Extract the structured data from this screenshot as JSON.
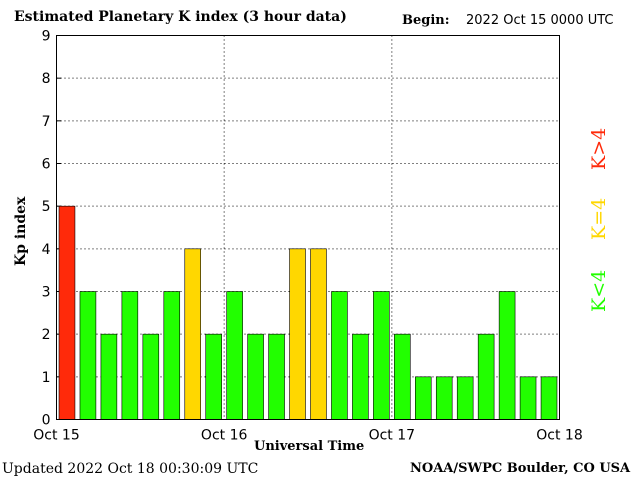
{
  "header": {
    "title": "Estimated Planetary K index (3 hour data)",
    "begin_label": "Begin:",
    "begin_value": "2022 Oct 15 0000 UTC"
  },
  "footer": {
    "updated_label": "Updated",
    "updated_value": "2022 Oct 18 00:30:09 UTC",
    "credit": "NOAA/SWPC Boulder, CO USA"
  },
  "legend": {
    "high": "K>4",
    "equal": "K=4",
    "low": "K<4"
  },
  "colors": {
    "high": "#ff2a0a",
    "equal": "#ffd700",
    "low": "#22ff00"
  },
  "chart_data": {
    "type": "bar",
    "title": "Estimated Planetary K index (3 hour data)",
    "xlabel": "Universal Time",
    "ylabel": "Kp index",
    "ylim": [
      0,
      9
    ],
    "yticks": [
      "0",
      "1",
      "2",
      "3",
      "4",
      "5",
      "6",
      "7",
      "8",
      "9"
    ],
    "xticks": [
      "Oct 15",
      "Oct 16",
      "Oct 17",
      "Oct 18"
    ],
    "grid": true,
    "categories": [
      "Oct 15 00",
      "Oct 15 03",
      "Oct 15 06",
      "Oct 15 09",
      "Oct 15 12",
      "Oct 15 15",
      "Oct 15 18",
      "Oct 15 21",
      "Oct 16 00",
      "Oct 16 03",
      "Oct 16 06",
      "Oct 16 09",
      "Oct 16 12",
      "Oct 16 15",
      "Oct 16 18",
      "Oct 16 21",
      "Oct 17 00",
      "Oct 17 03",
      "Oct 17 06",
      "Oct 17 09",
      "Oct 17 12",
      "Oct 17 15",
      "Oct 17 18",
      "Oct 17 21"
    ],
    "values": [
      5,
      3,
      2,
      3,
      2,
      3,
      4,
      2,
      3,
      2,
      2,
      4,
      4,
      3,
      2,
      3,
      2,
      1,
      1,
      1,
      2,
      3,
      1,
      1
    ]
  }
}
